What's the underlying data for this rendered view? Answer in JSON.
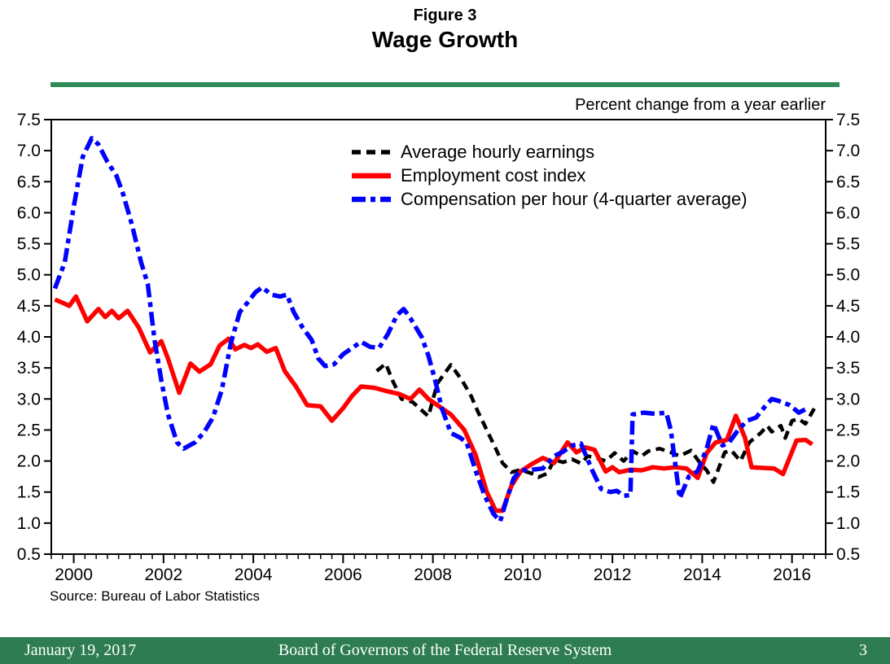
{
  "header": {
    "figure_label": "Figure 3",
    "title": "Wage Growth"
  },
  "subtitle": "Percent change from a year earlier",
  "source": "Source:  Bureau of Labor Statistics",
  "footer": {
    "date": "January 19, 2017",
    "center": "Board of Governors of the Federal Reserve System",
    "page": "3"
  },
  "colors": {
    "accent_green": "#2E8B57",
    "footer_green": "#2E7D52",
    "ahe_black": "#000000",
    "eci_red": "#FF0000",
    "cph_blue": "#0000FF"
  },
  "chart_data": {
    "type": "line",
    "title": "Wage Growth",
    "ylabel": "Percent change from a year earlier",
    "xlabel": "",
    "grid": false,
    "legend_position": "inside-top-center",
    "xlim": [
      1999.5,
      2016.75
    ],
    "ylim": [
      0.5,
      7.5
    ],
    "xticks": [
      2000,
      2002,
      2004,
      2006,
      2008,
      2010,
      2012,
      2014,
      2016
    ],
    "xminor_step": 0.25,
    "yticks": [
      0.5,
      1.0,
      1.5,
      2.0,
      2.5,
      3.0,
      3.5,
      4.0,
      4.5,
      5.0,
      5.5,
      6.0,
      6.5,
      7.0,
      7.5
    ],
    "series": [
      {
        "name": "Average hourly earnings",
        "color": "#000000",
        "style": "dashed",
        "points": [
          [
            2006.75,
            3.45
          ],
          [
            2006.95,
            3.57
          ],
          [
            2007.1,
            3.3
          ],
          [
            2007.3,
            3.0
          ],
          [
            2007.55,
            2.95
          ],
          [
            2007.9,
            2.72
          ],
          [
            2008.1,
            3.25
          ],
          [
            2008.4,
            3.55
          ],
          [
            2008.65,
            3.3
          ],
          [
            2008.85,
            3.05
          ],
          [
            2009.0,
            2.8
          ],
          [
            2009.2,
            2.5
          ],
          [
            2009.4,
            2.2
          ],
          [
            2009.55,
            1.97
          ],
          [
            2009.75,
            1.82
          ],
          [
            2009.95,
            1.86
          ],
          [
            2010.2,
            1.8
          ],
          [
            2010.35,
            1.74
          ],
          [
            2010.55,
            1.8
          ],
          [
            2010.7,
            2.02
          ],
          [
            2010.9,
            1.98
          ],
          [
            2011.1,
            2.03
          ],
          [
            2011.3,
            1.96
          ],
          [
            2011.45,
            2.08
          ],
          [
            2011.65,
            2.05
          ],
          [
            2011.85,
            2.0
          ],
          [
            2012.05,
            2.13
          ],
          [
            2012.25,
            2.0
          ],
          [
            2012.45,
            2.16
          ],
          [
            2012.65,
            2.08
          ],
          [
            2012.8,
            2.16
          ],
          [
            2013.05,
            2.2
          ],
          [
            2013.3,
            2.14
          ],
          [
            2013.5,
            2.08
          ],
          [
            2013.75,
            2.17
          ],
          [
            2013.95,
            1.97
          ],
          [
            2014.1,
            1.85
          ],
          [
            2014.25,
            1.66
          ],
          [
            2014.5,
            2.14
          ],
          [
            2014.65,
            2.17
          ],
          [
            2014.85,
            2.0
          ],
          [
            2015.05,
            2.3
          ],
          [
            2015.3,
            2.45
          ],
          [
            2015.45,
            2.57
          ],
          [
            2015.55,
            2.47
          ],
          [
            2015.75,
            2.57
          ],
          [
            2015.85,
            2.37
          ],
          [
            2016.0,
            2.65
          ],
          [
            2016.15,
            2.68
          ],
          [
            2016.3,
            2.6
          ],
          [
            2016.5,
            2.85
          ]
        ]
      },
      {
        "name": "Employment cost index",
        "color": "#FF0000",
        "style": "solid",
        "points": [
          [
            1999.58,
            4.6
          ],
          [
            1999.75,
            4.55
          ],
          [
            1999.9,
            4.5
          ],
          [
            2000.05,
            4.65
          ],
          [
            2000.3,
            4.25
          ],
          [
            2000.55,
            4.45
          ],
          [
            2000.7,
            4.32
          ],
          [
            2000.85,
            4.42
          ],
          [
            2001.0,
            4.3
          ],
          [
            2001.2,
            4.42
          ],
          [
            2001.45,
            4.15
          ],
          [
            2001.7,
            3.75
          ],
          [
            2001.95,
            3.93
          ],
          [
            2002.1,
            3.65
          ],
          [
            2002.35,
            3.1
          ],
          [
            2002.6,
            3.57
          ],
          [
            2002.8,
            3.44
          ],
          [
            2003.05,
            3.56
          ],
          [
            2003.25,
            3.86
          ],
          [
            2003.45,
            3.97
          ],
          [
            2003.6,
            3.8
          ],
          [
            2003.8,
            3.87
          ],
          [
            2003.95,
            3.82
          ],
          [
            2004.1,
            3.88
          ],
          [
            2004.3,
            3.76
          ],
          [
            2004.5,
            3.82
          ],
          [
            2004.7,
            3.45
          ],
          [
            2004.95,
            3.2
          ],
          [
            2005.2,
            2.9
          ],
          [
            2005.5,
            2.88
          ],
          [
            2005.75,
            2.65
          ],
          [
            2006.0,
            2.85
          ],
          [
            2006.2,
            3.05
          ],
          [
            2006.4,
            3.2
          ],
          [
            2006.7,
            3.18
          ],
          [
            2007.0,
            3.12
          ],
          [
            2007.25,
            3.08
          ],
          [
            2007.5,
            3.0
          ],
          [
            2007.7,
            3.15
          ],
          [
            2007.9,
            3.0
          ],
          [
            2008.1,
            2.9
          ],
          [
            2008.4,
            2.75
          ],
          [
            2008.7,
            2.5
          ],
          [
            2008.95,
            2.1
          ],
          [
            2009.2,
            1.5
          ],
          [
            2009.4,
            1.2
          ],
          [
            2009.55,
            1.2
          ],
          [
            2009.75,
            1.6
          ],
          [
            2009.95,
            1.83
          ],
          [
            2010.2,
            1.95
          ],
          [
            2010.45,
            2.05
          ],
          [
            2010.7,
            1.97
          ],
          [
            2011.0,
            2.3
          ],
          [
            2011.2,
            2.14
          ],
          [
            2011.4,
            2.22
          ],
          [
            2011.6,
            2.18
          ],
          [
            2011.85,
            1.83
          ],
          [
            2012.0,
            1.9
          ],
          [
            2012.15,
            1.82
          ],
          [
            2012.4,
            1.86
          ],
          [
            2012.65,
            1.85
          ],
          [
            2012.9,
            1.9
          ],
          [
            2013.15,
            1.88
          ],
          [
            2013.4,
            1.9
          ],
          [
            2013.65,
            1.88
          ],
          [
            2013.9,
            1.73
          ],
          [
            2014.1,
            2.13
          ],
          [
            2014.3,
            2.3
          ],
          [
            2014.55,
            2.34
          ],
          [
            2014.75,
            2.73
          ],
          [
            2014.95,
            2.38
          ],
          [
            2015.1,
            1.9
          ],
          [
            2015.35,
            1.89
          ],
          [
            2015.6,
            1.88
          ],
          [
            2015.8,
            1.79
          ],
          [
            2016.1,
            2.33
          ],
          [
            2016.3,
            2.34
          ],
          [
            2016.45,
            2.27
          ]
        ]
      },
      {
        "name": "Compensation per hour (4-quarter average)",
        "color": "#0000FF",
        "style": "dashdot",
        "points": [
          [
            1999.58,
            4.78
          ],
          [
            1999.8,
            5.2
          ],
          [
            2000.0,
            6.1
          ],
          [
            2000.2,
            6.9
          ],
          [
            2000.4,
            7.2
          ],
          [
            2000.55,
            7.1
          ],
          [
            2000.75,
            6.82
          ],
          [
            2000.95,
            6.6
          ],
          [
            2001.1,
            6.3
          ],
          [
            2001.3,
            5.8
          ],
          [
            2001.5,
            5.2
          ],
          [
            2001.65,
            4.85
          ],
          [
            2001.8,
            3.95
          ],
          [
            2001.95,
            3.3
          ],
          [
            2002.1,
            2.75
          ],
          [
            2002.3,
            2.3
          ],
          [
            2002.45,
            2.2
          ],
          [
            2002.7,
            2.3
          ],
          [
            2002.9,
            2.46
          ],
          [
            2003.1,
            2.7
          ],
          [
            2003.3,
            3.15
          ],
          [
            2003.5,
            3.9
          ],
          [
            2003.7,
            4.4
          ],
          [
            2003.9,
            4.58
          ],
          [
            2004.05,
            4.72
          ],
          [
            2004.2,
            4.8
          ],
          [
            2004.4,
            4.68
          ],
          [
            2004.6,
            4.65
          ],
          [
            2004.75,
            4.68
          ],
          [
            2004.9,
            4.4
          ],
          [
            2005.1,
            4.15
          ],
          [
            2005.3,
            3.95
          ],
          [
            2005.45,
            3.65
          ],
          [
            2005.6,
            3.53
          ],
          [
            2005.8,
            3.56
          ],
          [
            2006.0,
            3.72
          ],
          [
            2006.2,
            3.82
          ],
          [
            2006.4,
            3.92
          ],
          [
            2006.6,
            3.84
          ],
          [
            2006.8,
            3.82
          ],
          [
            2007.0,
            4.05
          ],
          [
            2007.2,
            4.35
          ],
          [
            2007.35,
            4.45
          ],
          [
            2007.5,
            4.3
          ],
          [
            2007.75,
            4.0
          ],
          [
            2007.9,
            3.7
          ],
          [
            2008.05,
            3.3
          ],
          [
            2008.2,
            2.85
          ],
          [
            2008.4,
            2.45
          ],
          [
            2008.6,
            2.38
          ],
          [
            2008.75,
            2.3
          ],
          [
            2008.95,
            1.85
          ],
          [
            2009.15,
            1.45
          ],
          [
            2009.35,
            1.15
          ],
          [
            2009.5,
            1.03
          ],
          [
            2009.65,
            1.4
          ],
          [
            2009.8,
            1.72
          ],
          [
            2009.95,
            1.85
          ],
          [
            2010.2,
            1.86
          ],
          [
            2010.45,
            1.88
          ],
          [
            2010.7,
            2.08
          ],
          [
            2010.9,
            2.15
          ],
          [
            2011.1,
            2.25
          ],
          [
            2011.3,
            2.28
          ],
          [
            2011.55,
            1.85
          ],
          [
            2011.75,
            1.55
          ],
          [
            2011.95,
            1.5
          ],
          [
            2012.1,
            1.52
          ],
          [
            2012.25,
            1.44
          ],
          [
            2012.4,
            1.45
          ],
          [
            2012.45,
            2.75
          ],
          [
            2012.7,
            2.78
          ],
          [
            2012.95,
            2.76
          ],
          [
            2013.2,
            2.78
          ],
          [
            2013.3,
            2.5
          ],
          [
            2013.5,
            1.4
          ],
          [
            2013.7,
            1.75
          ],
          [
            2013.9,
            1.84
          ],
          [
            2014.1,
            2.2
          ],
          [
            2014.25,
            2.6
          ],
          [
            2014.45,
            2.25
          ],
          [
            2014.6,
            2.3
          ],
          [
            2014.8,
            2.5
          ],
          [
            2015.0,
            2.65
          ],
          [
            2015.2,
            2.7
          ],
          [
            2015.4,
            2.88
          ],
          [
            2015.55,
            3.0
          ],
          [
            2015.7,
            2.97
          ],
          [
            2015.95,
            2.9
          ],
          [
            2016.15,
            2.78
          ],
          [
            2016.35,
            2.85
          ]
        ]
      }
    ]
  }
}
